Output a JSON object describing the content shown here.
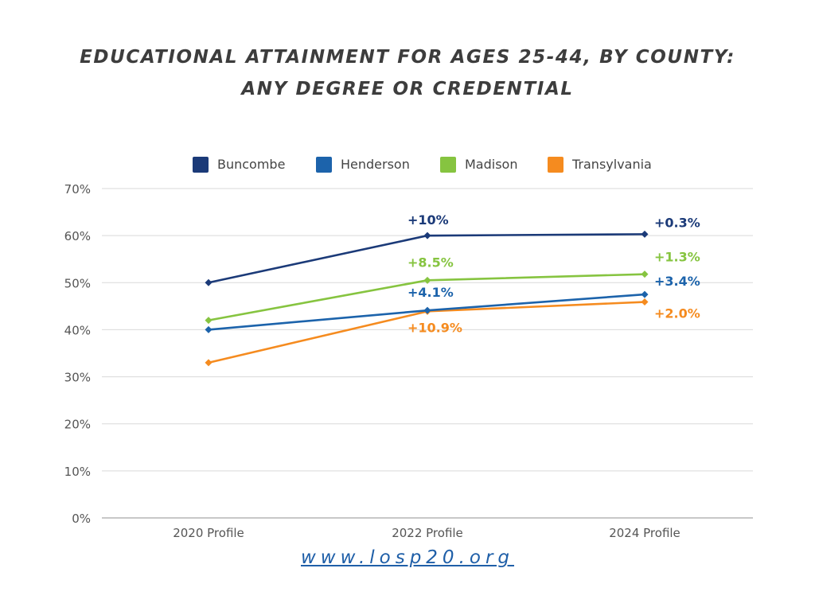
{
  "title": {
    "line1": "EDUCATIONAL ATTAINMENT FOR AGES 25-44, BY COUNTY:",
    "line2": "ANY DEGREE OR CREDENTIAL"
  },
  "footer": {
    "link_text": "www.losp20.org"
  },
  "colors": {
    "buncombe": "#1b3a78",
    "henderson": "#1c63ab",
    "madison": "#86c440",
    "transylvania": "#f58b1f",
    "grid": "#d9d9d9",
    "axis_text": "#555555"
  },
  "chart_data": {
    "type": "line",
    "categories": [
      "2020 Profile",
      "2022 Profile",
      "2024 Profile"
    ],
    "ylim": [
      0,
      70
    ],
    "yticks": [
      0,
      10,
      20,
      30,
      40,
      50,
      60,
      70
    ],
    "ytick_labels": [
      "0%",
      "10%",
      "20%",
      "30%",
      "40%",
      "50%",
      "60%",
      "70%"
    ],
    "grid": true,
    "legend_position": "top",
    "markers": "diamond",
    "xlabel": "",
    "ylabel": "",
    "series": [
      {
        "name": "Buncombe",
        "color": "#1b3a78",
        "values": [
          50,
          60,
          60.3
        ],
        "labels": [
          "",
          "+10%",
          "+0.3%"
        ]
      },
      {
        "name": "Henderson",
        "color": "#1c63ab",
        "values": [
          40,
          44.1,
          47.5
        ],
        "labels": [
          "",
          "+4.1%",
          "+3.4%"
        ]
      },
      {
        "name": "Madison",
        "color": "#86c440",
        "values": [
          42,
          50.5,
          51.8
        ],
        "labels": [
          "",
          "+8.5%",
          "+1.3%"
        ]
      },
      {
        "name": "Transylvania",
        "color": "#f58b1f",
        "values": [
          33,
          43.9,
          45.9
        ],
        "labels": [
          "",
          "+10.9%",
          "+2.0%"
        ]
      }
    ]
  }
}
